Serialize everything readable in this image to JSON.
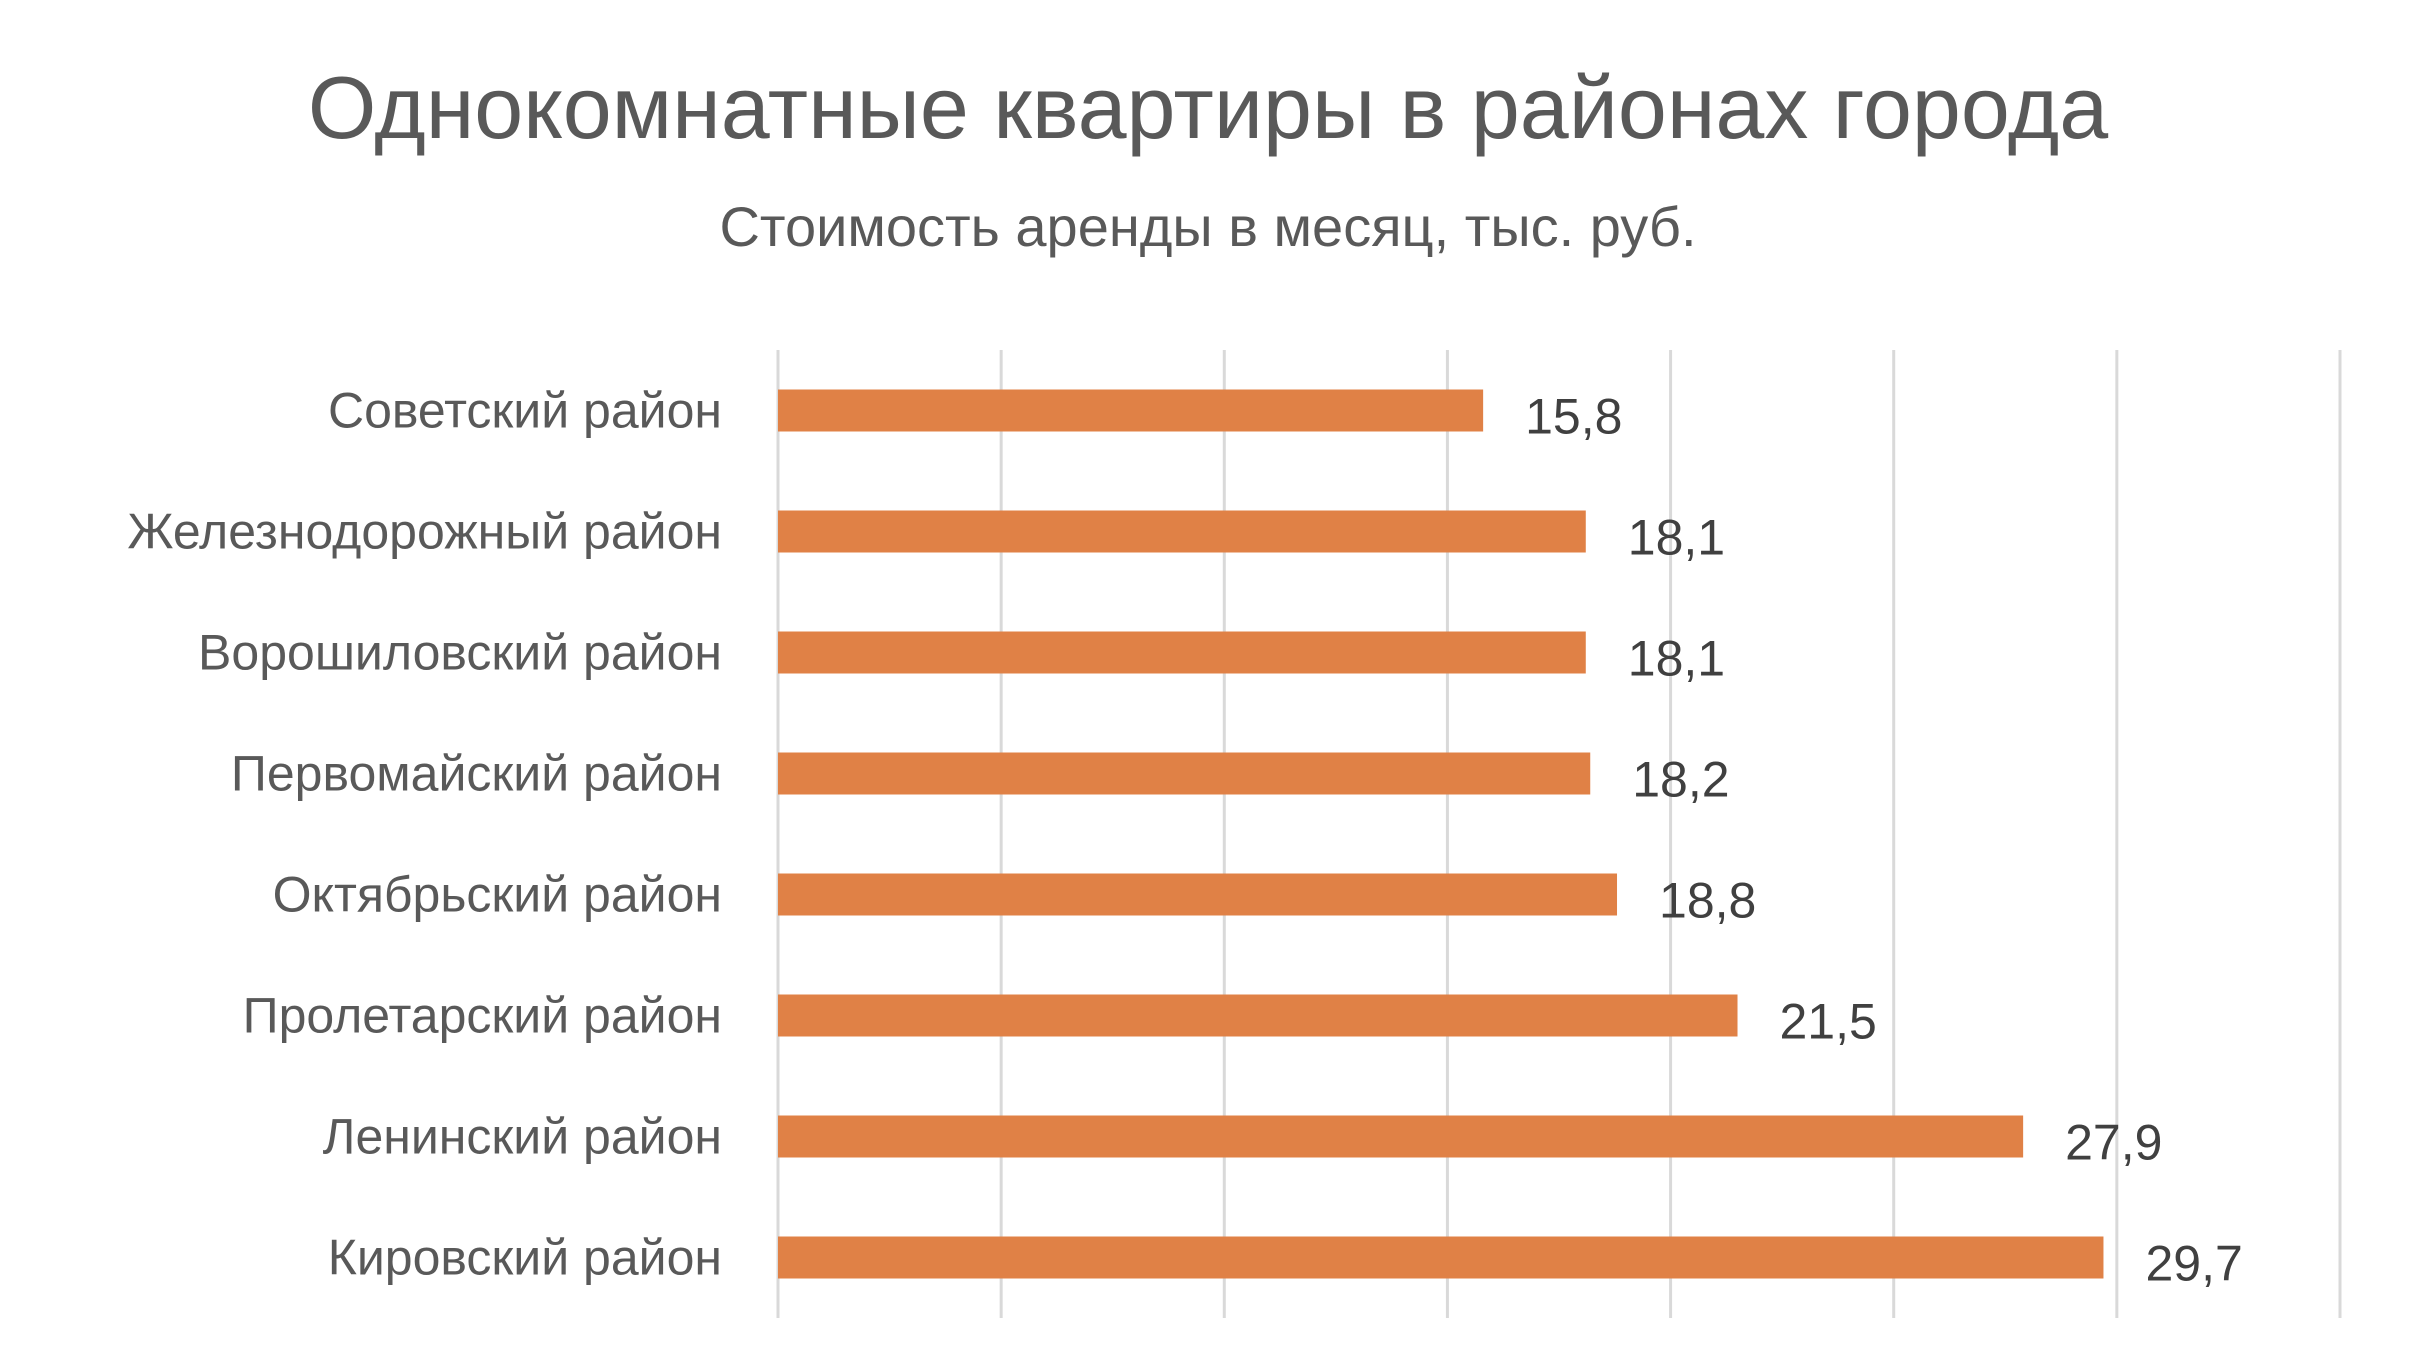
{
  "chart_data": {
    "type": "bar",
    "orientation": "horizontal",
    "title": "Однокомнатные квартиры в районах города",
    "subtitle": "Стоимость аренды в месяц, тыс. руб.",
    "categories": [
      "Советский район",
      "Железнодорожный район",
      "Ворошиловский район",
      "Первомайский район",
      "Октябрьский район",
      "Пролетарский район",
      "Ленинский район",
      "Кировский район"
    ],
    "values": [
      15.8,
      18.1,
      18.1,
      18.2,
      18.8,
      21.5,
      27.9,
      29.7
    ],
    "data_labels": [
      "15,8",
      "18,1",
      "18,1",
      "18,2",
      "18,8",
      "21,5",
      "27,9",
      "29,7"
    ],
    "xlim": [
      0,
      35
    ],
    "grid": true,
    "x_axis_tick_labels_shown": false,
    "colors": {
      "bar": "#E08146",
      "grid": "#D9D9D9",
      "text": "#595959",
      "data_label": "#404040"
    }
  }
}
